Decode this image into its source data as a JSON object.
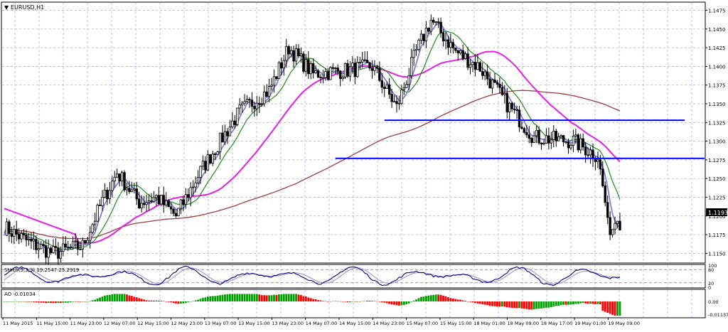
{
  "window": {
    "title": "EURUSD,H1"
  },
  "price_axis": {
    "labels": [
      "1.1475",
      "1.1450",
      "1.1425",
      "1.1400",
      "1.1375",
      "1.1350",
      "1.1325",
      "1.1300",
      "1.1275",
      "1.1250",
      "1.1225",
      "1.1200",
      "1.1175",
      "1.1150"
    ],
    "current_price": "1.1193"
  },
  "time_axis": {
    "labels": [
      "11 May 2015",
      "11 May 15:00",
      "11 May 23:00",
      "12 May 07:00",
      "12 May 15:00",
      "12 May 23:00",
      "13 May 07:00",
      "13 May 15:00",
      "13 May 23:00",
      "14 May 07:00",
      "14 May 15:00",
      "14 May 23:00",
      "15 May 07:00",
      "15 May 15:00",
      "18 May 01:00",
      "18 May 09:00",
      "18 May 17:00",
      "19 May 01:00",
      "19 May 09:00"
    ]
  },
  "stoch_panel": {
    "label": "Stoch(5,3,3) 19.2547 25.2919",
    "scale": [
      "100",
      "80",
      "20",
      "0"
    ]
  },
  "ao_panel": {
    "label": "AO -0.01034",
    "scale": [
      "0.00",
      "-0.01137"
    ]
  },
  "colors": {
    "background": "#ffffff",
    "grid": "#a9a9c8",
    "bull_body": "#ffffff",
    "bear_body": "#000000",
    "ma_green": "#1a8f1a",
    "ma_blue": "#8080e0",
    "ma_magenta": "#e61ee6",
    "ma_brown": "#a03c3c",
    "levels": "#0000ff",
    "stoch_main": "#000080",
    "stoch_signal": "#9090d0",
    "ao_up": "#00a000",
    "ao_down": "#ff0000"
  },
  "chart_data": {
    "type": "candlestick",
    "symbol": "EURUSD",
    "timeframe": "H1",
    "ylim": [
      1.1138,
      1.1485
    ],
    "horizontal_levels": [
      {
        "price": 1.1328,
        "from_index": 155
      },
      {
        "price": 1.1277,
        "from_index": 135
      }
    ],
    "anchors": [
      [
        0,
        1.1185
      ],
      [
        10,
        1.1165
      ],
      [
        20,
        1.115
      ],
      [
        32,
        1.116
      ],
      [
        40,
        1.122
      ],
      [
        46,
        1.1258
      ],
      [
        55,
        1.1218
      ],
      [
        62,
        1.1225
      ],
      [
        70,
        1.12
      ],
      [
        80,
        1.126
      ],
      [
        96,
        1.134
      ],
      [
        108,
        1.1368
      ],
      [
        116,
        1.1425
      ],
      [
        126,
        1.139
      ],
      [
        140,
        1.1395
      ],
      [
        150,
        1.14
      ],
      [
        160,
        1.1345
      ],
      [
        168,
        1.142
      ],
      [
        174,
        1.1462
      ],
      [
        184,
        1.142
      ],
      [
        194,
        1.1398
      ],
      [
        206,
        1.1345
      ],
      [
        216,
        1.1305
      ],
      [
        232,
        1.13
      ],
      [
        242,
        1.128
      ],
      [
        246,
        1.1198
      ],
      [
        250,
        1.1192
      ]
    ],
    "stochastic": {
      "k": 19.2547,
      "d": 25.2919,
      "levels": [
        80,
        20
      ]
    },
    "awesome_oscillator": {
      "value": -0.01034,
      "min": -0.01137
    }
  }
}
